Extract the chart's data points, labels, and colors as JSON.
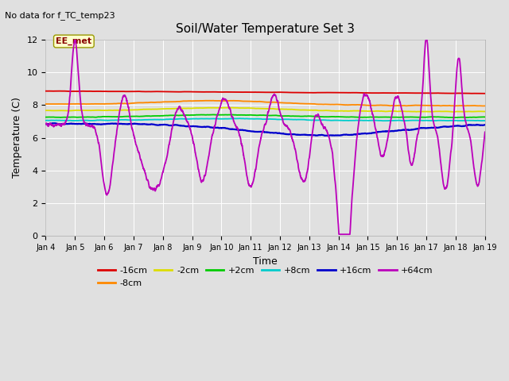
{
  "title": "Soil/Water Temperature Set 3",
  "xlabel": "Time",
  "ylabel": "Temperature (C)",
  "no_data_text": "No data for f_TC_temp23",
  "annotation_text": "EE_met",
  "ylim": [
    0,
    12
  ],
  "yticks": [
    0,
    2,
    4,
    6,
    8,
    10,
    12
  ],
  "xtick_labels": [
    "Jan 4",
    "Jan 5",
    "Jan 6",
    "Jan 7",
    "Jan 8",
    "Jan 9",
    "Jan 10",
    "Jan 11",
    "Jan 12",
    "Jan 13",
    "Jan 14",
    "Jan 15",
    "Jan 16",
    "Jan 17",
    "Jan 18",
    "Jan 19"
  ],
  "colors": {
    "-16cm": "#dd0000",
    "-8cm": "#ff8800",
    "-2cm": "#dddd00",
    "+2cm": "#00cc00",
    "+8cm": "#00cccc",
    "+16cm": "#0000cc",
    "+64cm": "#bb00bb"
  },
  "figsize": [
    6.4,
    4.8
  ],
  "dpi": 100,
  "bg_color": "#e0e0e0"
}
